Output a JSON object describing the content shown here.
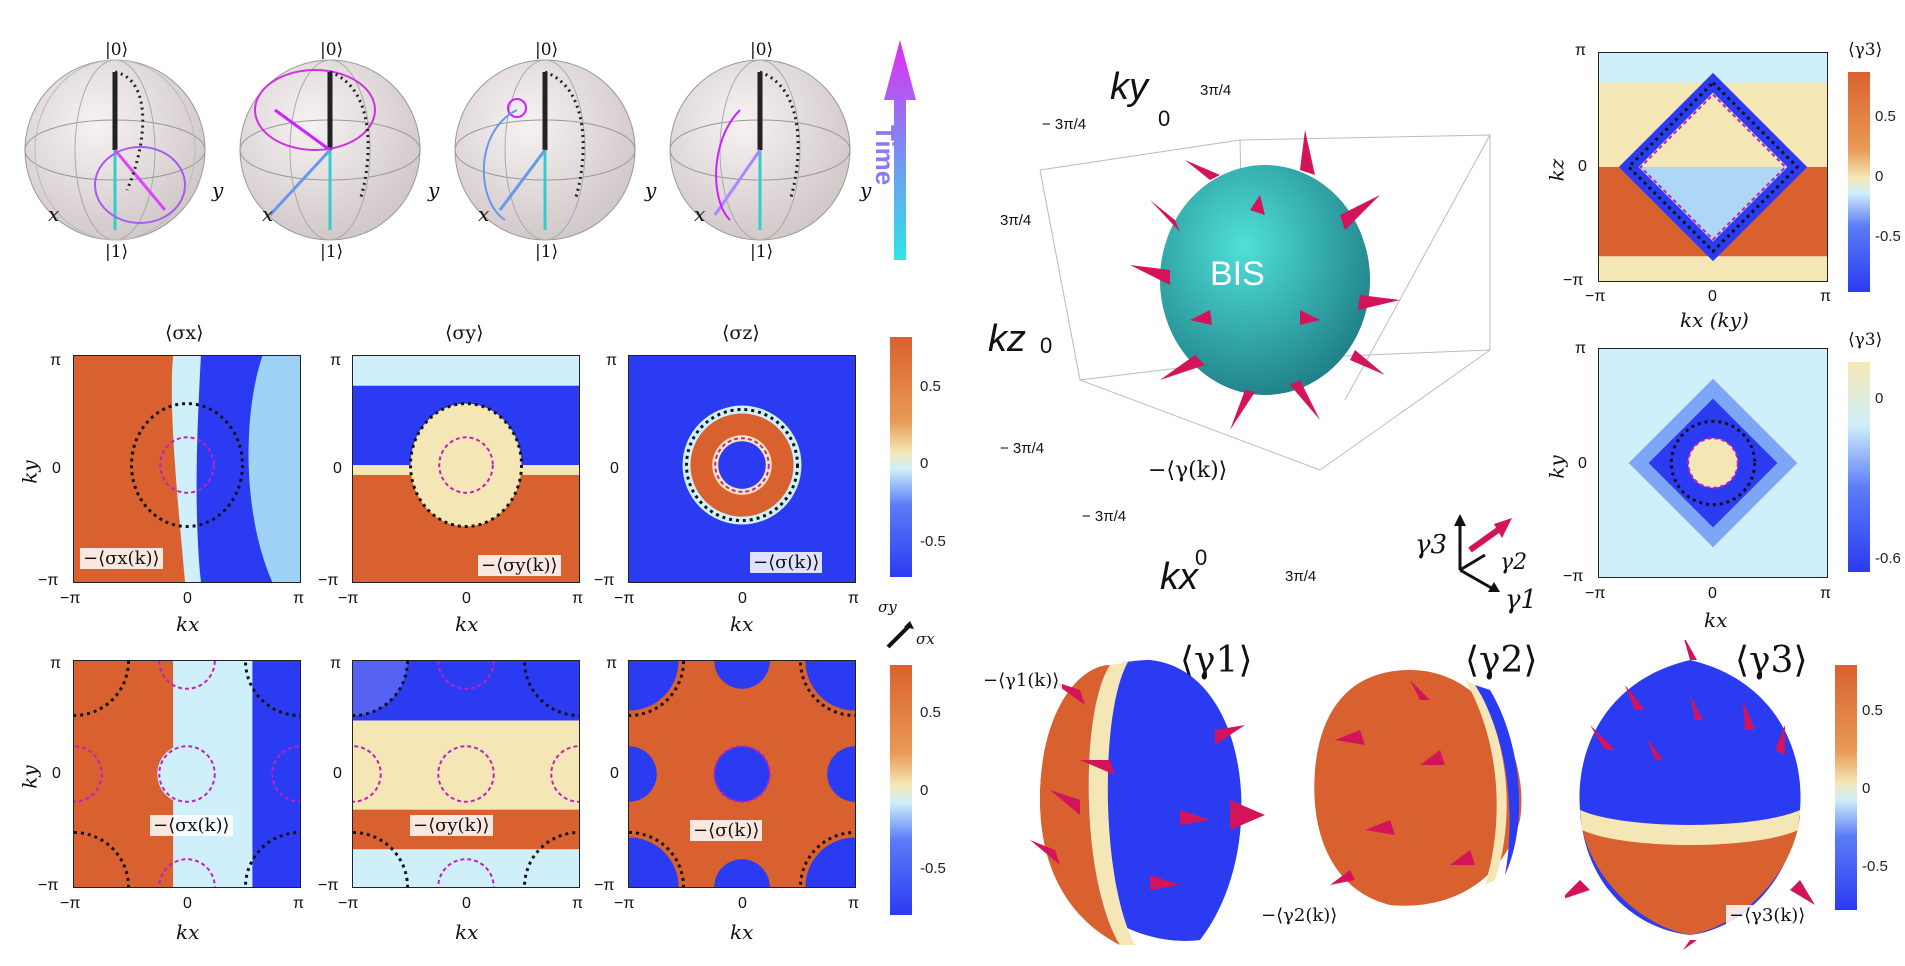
{
  "bloch": {
    "top": "|0⟩",
    "bottom": "|1⟩",
    "x": "x",
    "y": "y",
    "time_label": "Time"
  },
  "row_titles": {
    "sx": "⟨σx⟩",
    "sy": "⟨σy⟩",
    "sz": "⟨σz⟩"
  },
  "axes": {
    "kx": "kx",
    "ky": "ky",
    "kz": "kz",
    "kx_ky": "kx (ky)",
    "pi": "π",
    "minus_pi": "−π",
    "zero": "0"
  },
  "overlays": {
    "r1a": "−⟨σx(k)⟩",
    "r1b": "−⟨σy(k)⟩",
    "r1c": "−⟨σ(k)⟩",
    "r2a": "−⟨σx(k)⟩",
    "r2b": "−⟨σy(k)⟩",
    "r2c": "−⟨σ(k)⟩"
  },
  "colorbars": {
    "left_top": [
      "0.5",
      "0",
      "-0.5"
    ],
    "left_bottom": [
      "0.5",
      "0",
      "-0.5"
    ],
    "right_top": [
      "0.5",
      "0",
      "-0.5"
    ],
    "right_mid": [
      "0",
      "-0.6"
    ],
    "right_bottom": [
      "0.5",
      "0",
      "-0.5"
    ],
    "right_top_title": "⟨γ3⟩",
    "right_mid_title": "⟨γ3⟩"
  },
  "sigma_legend": {
    "sy": "σy",
    "sx": "σx"
  },
  "cube": {
    "ky": "ky",
    "kz": "kz",
    "kx": "kx",
    "ky_zero": "0",
    "kz_zero": "0",
    "kx_zero": "0",
    "ky_tick_a": "3π/4",
    "ky_tick_b": "− 3π/4",
    "kz_tick_a": "3π/4",
    "kz_tick_b": "− 3π/4",
    "kx_tick_a": "− 3π/4",
    "kx_tick_b": "3π/4",
    "bis": "BIS",
    "gamma_label": "−⟨γ(k)⟩",
    "g1": "γ1",
    "g2": "γ2",
    "g3": "γ3"
  },
  "spheres": {
    "t1": "⟨γ1⟩",
    "t2": "⟨γ2⟩",
    "t3": "⟨γ3⟩",
    "l1": "−⟨γ1(k)⟩",
    "l2": "−⟨γ2(k)⟩",
    "l3": "−⟨γ3(k)⟩"
  },
  "colors": {
    "orange": "#d9612f",
    "blue": "#2b3bf2",
    "cream": "#f5e7b5",
    "magenta": "#d8006a",
    "teal": "#2bb5b5"
  }
}
